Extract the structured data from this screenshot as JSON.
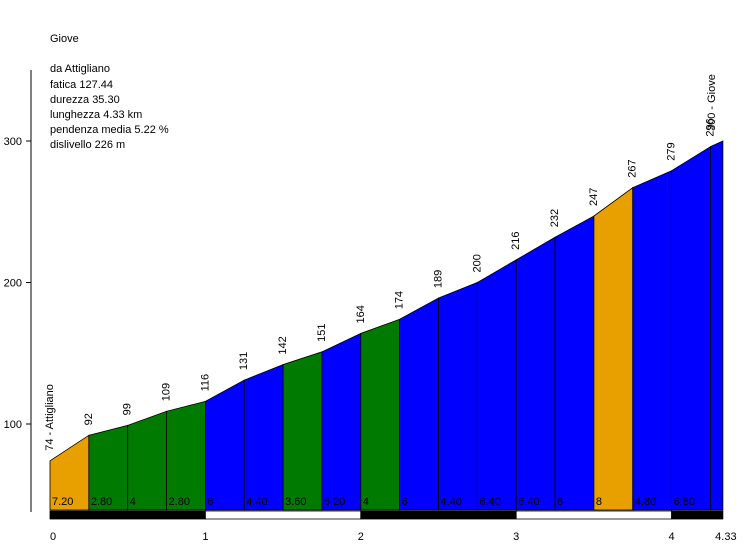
{
  "info": {
    "name": "Giove",
    "from": "da Attigliano",
    "fatica": "fatica 127.44",
    "durezza": "durezza 35.30",
    "lunghezza": "lunghezza 4.33 km",
    "pendenza": "pendenza media 5.22 %",
    "dislivello": "dislivello 226 m"
  },
  "colors": {
    "orange": "#e8a000",
    "green": "#007a00",
    "blue": "#0000ff",
    "bar_dark": "#000000",
    "bar_light": "#ffffff"
  },
  "chart_data": {
    "type": "area",
    "xlabel": "",
    "ylabel": "",
    "x_unit": "km",
    "y_unit": "m",
    "ylim": [
      45,
      355
    ],
    "xlim": [
      0,
      4.33
    ],
    "y_ticks": [
      100,
      200,
      300
    ],
    "x_ticks": [
      "0",
      "1",
      "2",
      "3",
      "4",
      "4.33"
    ],
    "points": [
      {
        "km": 0.0,
        "alt": 74,
        "label": "74 - Attigliano"
      },
      {
        "km": 0.25,
        "alt": 92,
        "label": "92"
      },
      {
        "km": 0.5,
        "alt": 99,
        "label": "99"
      },
      {
        "km": 0.75,
        "alt": 109,
        "label": "109"
      },
      {
        "km": 1.0,
        "alt": 116,
        "label": "116"
      },
      {
        "km": 1.25,
        "alt": 131,
        "label": "131"
      },
      {
        "km": 1.5,
        "alt": 142,
        "label": "142"
      },
      {
        "km": 1.75,
        "alt": 151,
        "label": "151"
      },
      {
        "km": 2.0,
        "alt": 164,
        "label": "164"
      },
      {
        "km": 2.25,
        "alt": 174,
        "label": "174"
      },
      {
        "km": 2.5,
        "alt": 189,
        "label": "189"
      },
      {
        "km": 2.75,
        "alt": 200,
        "label": "200"
      },
      {
        "km": 3.0,
        "alt": 216,
        "label": "216"
      },
      {
        "km": 3.25,
        "alt": 232,
        "label": "232"
      },
      {
        "km": 3.5,
        "alt": 247,
        "label": "247"
      },
      {
        "km": 3.75,
        "alt": 267,
        "label": "267"
      },
      {
        "km": 4.0,
        "alt": 279,
        "label": "279"
      },
      {
        "km": 4.25,
        "alt": 296,
        "label": "296"
      },
      {
        "km": 4.33,
        "alt": 300,
        "label": "300 - Giove"
      }
    ],
    "segments": [
      {
        "grade": "7.20",
        "color": "orange"
      },
      {
        "grade": "2.80",
        "color": "green"
      },
      {
        "grade": "4",
        "color": "green"
      },
      {
        "grade": "2.80",
        "color": "green"
      },
      {
        "grade": "6",
        "color": "blue"
      },
      {
        "grade": "4.40",
        "color": "blue"
      },
      {
        "grade": "3.60",
        "color": "green"
      },
      {
        "grade": "5.20",
        "color": "blue"
      },
      {
        "grade": "4",
        "color": "green"
      },
      {
        "grade": "6",
        "color": "blue"
      },
      {
        "grade": "4.40",
        "color": "blue"
      },
      {
        "grade": "6.40",
        "color": "blue"
      },
      {
        "grade": "6.40",
        "color": "blue"
      },
      {
        "grade": "6",
        "color": "blue"
      },
      {
        "grade": "8",
        "color": "orange"
      },
      {
        "grade": "4.80",
        "color": "blue"
      },
      {
        "grade": "6.80",
        "color": "blue"
      },
      {
        "grade": "",
        "color": "blue"
      }
    ]
  }
}
